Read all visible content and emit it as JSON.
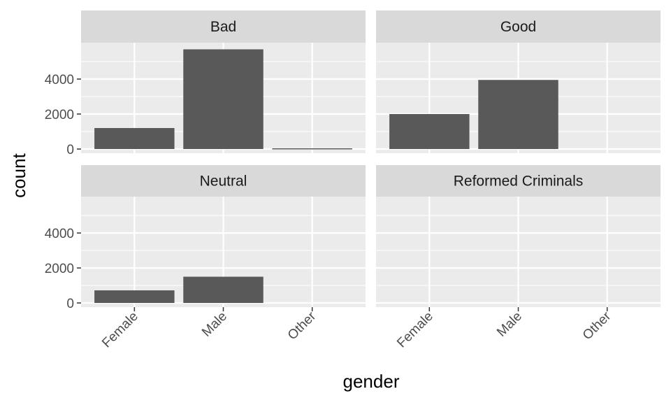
{
  "chart_data": {
    "type": "bar",
    "facet_by": "alignment",
    "xlabel": "gender",
    "ylabel": "count",
    "categories": [
      "Female",
      "Male",
      "Other"
    ],
    "yticks": [
      0,
      2000,
      4000
    ],
    "ylim": [
      0,
      6000
    ],
    "colors": {
      "bar": "#595959",
      "panel": "#ebebeb",
      "grid": "#ffffff",
      "strip": "#d9d9d9"
    },
    "panels": [
      {
        "name": "Bad",
        "values": [
          1200,
          5700,
          40
        ]
      },
      {
        "name": "Good",
        "values": [
          2000,
          3950,
          0
        ]
      },
      {
        "name": "Neutral",
        "values": [
          720,
          1500,
          0
        ]
      },
      {
        "name": "Reformed Criminals",
        "values": [
          0,
          0,
          0
        ]
      }
    ]
  }
}
